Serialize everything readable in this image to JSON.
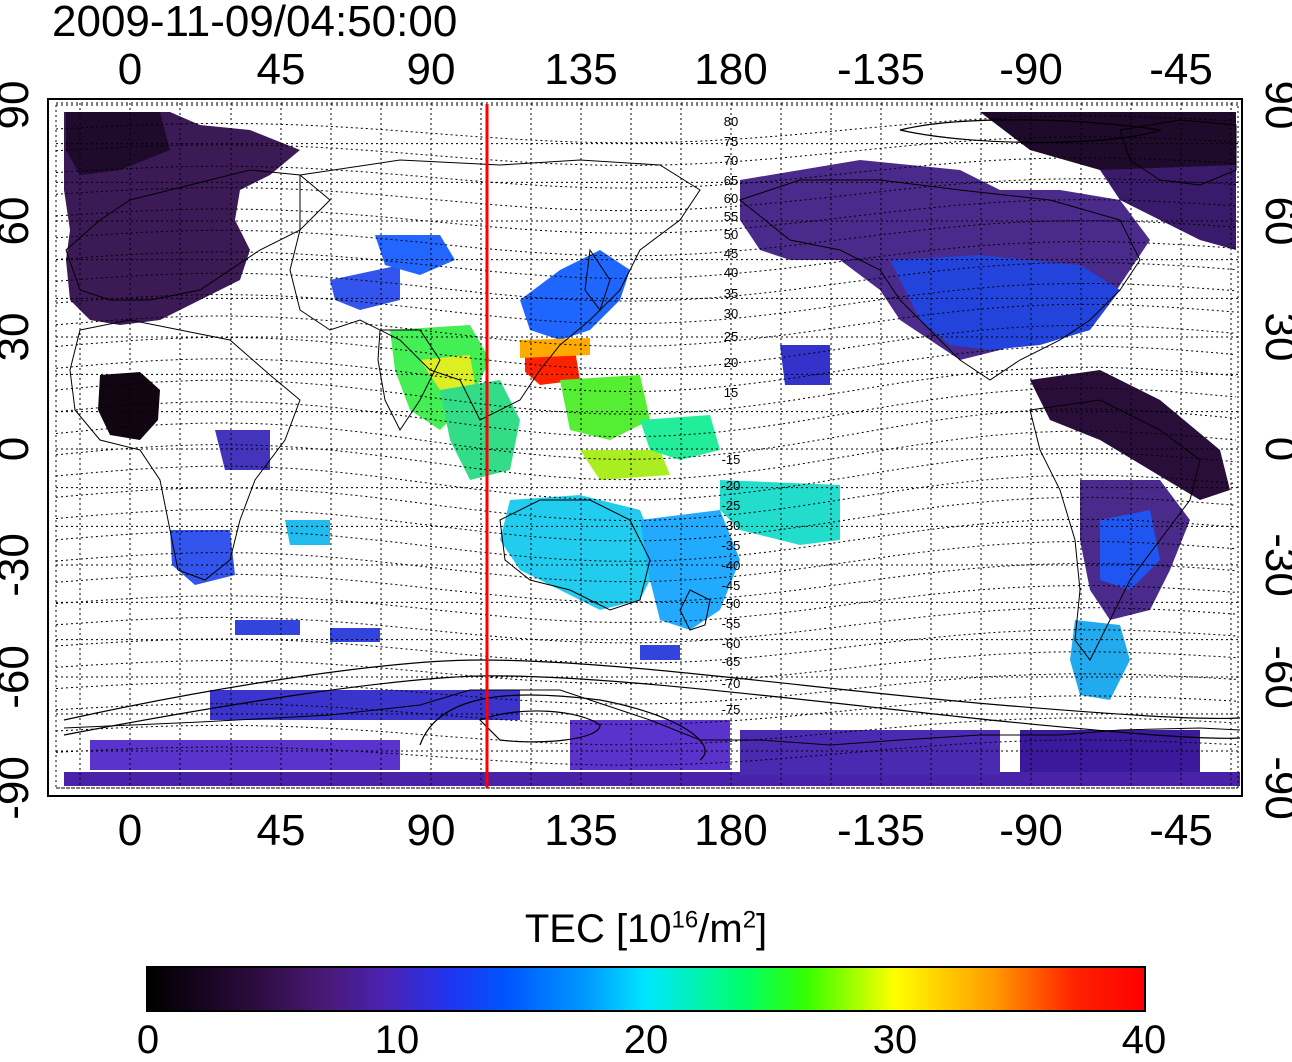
{
  "title": "2009-11-09/04:50:00",
  "map": {
    "lon_ticks": [
      "0",
      "45",
      "90",
      "135",
      "180",
      "-135",
      "-90",
      "-45"
    ],
    "lat_ticks": [
      "90",
      "60",
      "30",
      "0",
      "-30",
      "-60",
      "-90"
    ],
    "maglat_labels_north": [
      "80",
      "75",
      "70",
      "65",
      "60",
      "55",
      "50",
      "45",
      "40",
      "35",
      "30",
      "25",
      "20",
      "15"
    ],
    "maglat_labels_south": [
      "-15",
      "-20",
      "-25",
      "-30",
      "-35",
      "-40",
      "-45",
      "-50",
      "-55",
      "-60",
      "-65",
      "-70",
      "-75"
    ],
    "terminator_color": "#ff0000",
    "tec_colors": {
      "low": "#1a0020",
      "mid": "#0055ff",
      "high": "#ff0000"
    }
  },
  "colorbar": {
    "title_prefix": "TEC  [10",
    "title_sup1": "16",
    "title_mid": "/m",
    "title_sup2": "2",
    "title_suffix": "]",
    "ticks": [
      "0",
      "10",
      "20",
      "30",
      "40"
    ],
    "range": [
      0,
      40
    ]
  }
}
